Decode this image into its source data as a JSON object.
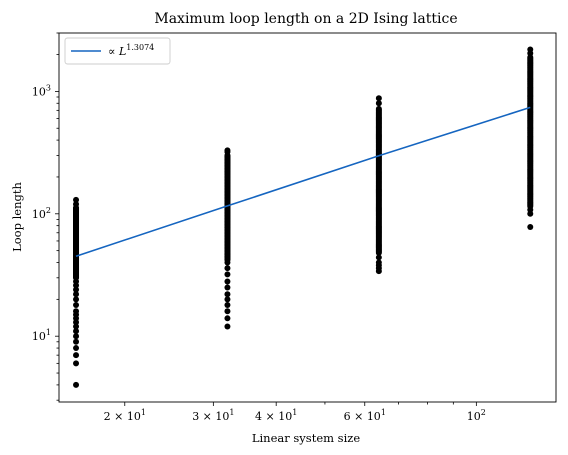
{
  "chart_data": {
    "type": "scatter",
    "title": "Maximum loop length on a 2D Ising lattice",
    "xlabel": "Linear system size",
    "ylabel": "Loop length",
    "xscale": "log",
    "yscale": "log",
    "xlim": [
      14.8,
      144
    ],
    "ylim": [
      2.9,
      3000
    ],
    "grid": false,
    "legend_placement": "top-left",
    "x_ticks": [
      {
        "value": 20,
        "mantissa": "2",
        "base": "10",
        "exp": "1"
      },
      {
        "value": 30,
        "mantissa": "3",
        "base": "10",
        "exp": "1"
      },
      {
        "value": 40,
        "mantissa": "4",
        "base": "10",
        "exp": "1"
      },
      {
        "value": 60,
        "mantissa": "6",
        "base": "10",
        "exp": "1"
      },
      {
        "value": 100,
        "mantissa": "",
        "base": "10",
        "exp": "2"
      }
    ],
    "y_ticks": [
      {
        "value": 10,
        "base": "10",
        "exp": "1"
      },
      {
        "value": 100,
        "base": "10",
        "exp": "2"
      },
      {
        "value": 1000,
        "base": "10",
        "exp": "3"
      }
    ],
    "series": [
      {
        "kind": "scatter",
        "color": "#000000",
        "columns": [
          {
            "x": 16,
            "y_min": 4,
            "y_max": 130,
            "sparse": [
              4,
              6,
              7,
              8,
              9,
              10,
              11,
              12,
              13,
              14,
              15,
              16,
              18,
              20,
              22,
              24,
              26,
              28
            ],
            "dense_min": 30,
            "dense_max": 112,
            "top": [
              120,
              130
            ]
          },
          {
            "x": 32,
            "y_min": 12,
            "y_max": 330,
            "sparse": [
              12,
              14,
              16,
              18,
              20,
              22,
              25,
              28,
              32,
              36,
              40
            ],
            "dense_min": 42,
            "dense_max": 300,
            "top": [
              320,
              330
            ]
          },
          {
            "x": 64,
            "y_min": 34,
            "y_max": 880,
            "sparse": [
              34,
              36,
              38,
              40,
              44
            ],
            "dense_min": 48,
            "dense_max": 720,
            "top": [
              800,
              880
            ]
          },
          {
            "x": 128,
            "y_min": 78,
            "y_max": 2200,
            "sparse": [
              78,
              100,
              108
            ],
            "dense_min": 115,
            "dense_max": 1900,
            "top": [
              2050,
              2200
            ]
          }
        ]
      },
      {
        "kind": "line",
        "color": "#1565c0",
        "legend": {
          "prefix": "∝ ",
          "base": "L",
          "exp": "1.3074"
        },
        "points": [
          [
            16,
            45
          ],
          [
            32,
            116
          ],
          [
            64,
            298
          ],
          [
            128,
            740
          ]
        ]
      }
    ]
  }
}
